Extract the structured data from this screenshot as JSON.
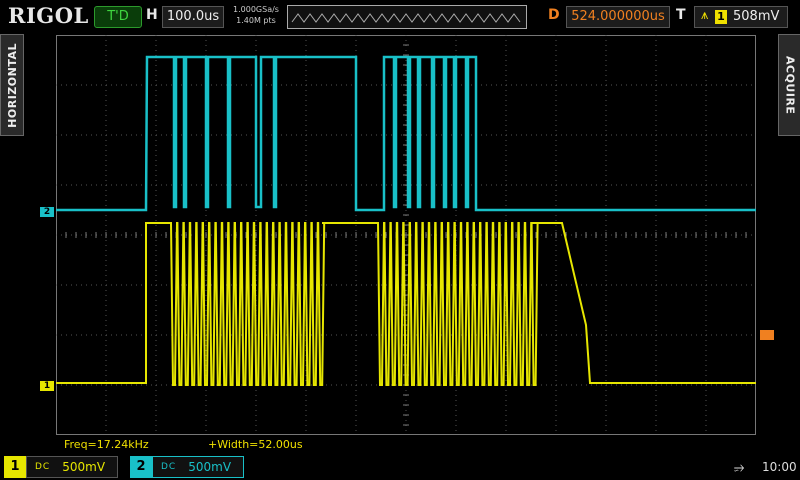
{
  "brand": "RIGOL",
  "header": {
    "run_status": "T'D",
    "horizontal_letter": "H",
    "timebase": "100.0us",
    "sample_rate": "1.000GSa/s",
    "memory_depth": "1.40M pts",
    "trigger_pos_marker": "T",
    "delay_letter": "D",
    "delay_value": "524.000000us",
    "trigger_letter": "T",
    "trigger_edge": "rising-edge-icon",
    "trigger_source": "1",
    "trigger_level": "508mV"
  },
  "side_tabs": {
    "left": "HORIZONTAL",
    "right": "ACQUIRE"
  },
  "markers": {
    "ch1": "1",
    "ch2": "2",
    "trigger_top": "T"
  },
  "measurements": {
    "freq": "Freq=17.24kHz",
    "width": "+Width=52.00us"
  },
  "channels": [
    {
      "num": "1",
      "coupling": "DC",
      "scale": "500mV",
      "color": "#e6e600"
    },
    {
      "num": "2",
      "coupling": "DC",
      "scale": "500mV",
      "color": "#19c0c8"
    }
  ],
  "status": {
    "usb_icon": "usb-icon",
    "time": "10:00"
  },
  "colors": {
    "ch1": "#e6e600",
    "ch2": "#19c0c8",
    "trigger": "#f08020"
  }
}
